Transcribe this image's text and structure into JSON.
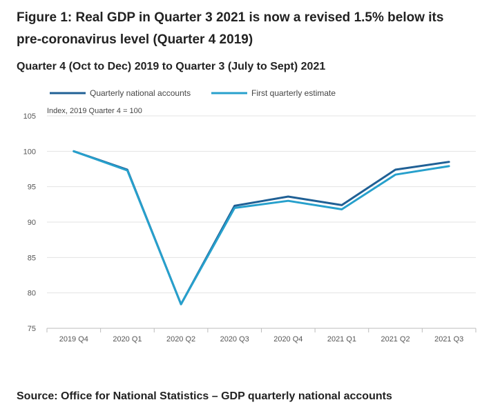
{
  "chart_data": {
    "type": "line",
    "title": "Figure 1: Real GDP in Quarter 3 2021 is now a revised 1.5% below its pre-coronavirus level (Quarter 4 2019)",
    "subtitle": "Quarter 4 (Oct to Dec) 2019 to Quarter 3 (July to Sept) 2021",
    "ylabel": "Index, 2019 Quarter 4 = 100",
    "xlabel": "",
    "ylim": [
      75,
      105
    ],
    "yticks": [
      75,
      80,
      85,
      90,
      95,
      100,
      105
    ],
    "categories": [
      "2019 Q4",
      "2020 Q1",
      "2020 Q2",
      "2020 Q3",
      "2020 Q4",
      "2021 Q1",
      "2021 Q2",
      "2021 Q3"
    ],
    "series": [
      {
        "name": "Quarterly national accounts",
        "color": "#206095",
        "values": [
          100,
          97.4,
          78.4,
          92.3,
          93.6,
          92.4,
          97.4,
          98.5
        ]
      },
      {
        "name": "First quarterly estimate",
        "color": "#27a0cc",
        "values": [
          100,
          97.3,
          78.4,
          92.0,
          93.0,
          91.8,
          96.7,
          97.9
        ]
      }
    ],
    "grid": true,
    "legend": "top-left",
    "source": "Source: Office for National Statistics – GDP quarterly national accounts"
  }
}
